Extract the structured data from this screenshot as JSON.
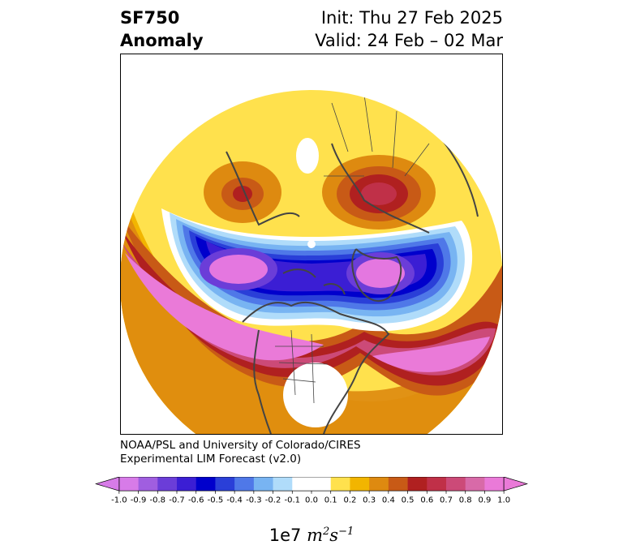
{
  "header": {
    "variable": "SF750",
    "field": "Anomaly",
    "init": "Init: Thu 27 Feb 2025",
    "valid": "Valid: 24 Feb – 02 Mar"
  },
  "credit": {
    "line1": "NOAA/PSL and University of Colorado/CIRES",
    "line2": "Experimental LIM Forecast (v2.0)"
  },
  "colorbar": {
    "ticks": [
      "-1.0",
      "-0.9",
      "-0.8",
      "-0.7",
      "-0.6",
      "-0.5",
      "-0.4",
      "-0.3",
      "-0.2",
      "-0.1",
      "0.0",
      "0.1",
      "0.2",
      "0.3",
      "0.4",
      "0.5",
      "0.6",
      "0.7",
      "0.8",
      "0.9",
      "1.0"
    ],
    "colors": [
      "#d77be8",
      "#a05ee0",
      "#6b3dd8",
      "#3b1ed4",
      "#0000cc",
      "#2a3fd8",
      "#4f78e8",
      "#78b4f2",
      "#b0dcfa",
      "#ffffff",
      "#ffffff",
      "#ffe14d",
      "#f2b500",
      "#de8a10",
      "#c85a16",
      "#b02020",
      "#c03048",
      "#cc4a78",
      "#d86aa8",
      "#ea7ad8"
    ],
    "unit_prefix": "1e7",
    "extend": "both"
  },
  "map": {
    "projection": "north-polar-stereographic",
    "colors": {
      "land": "#444444",
      "low_extreme": "#e477e0",
      "high_extreme": "#ea7ad8"
    }
  }
}
